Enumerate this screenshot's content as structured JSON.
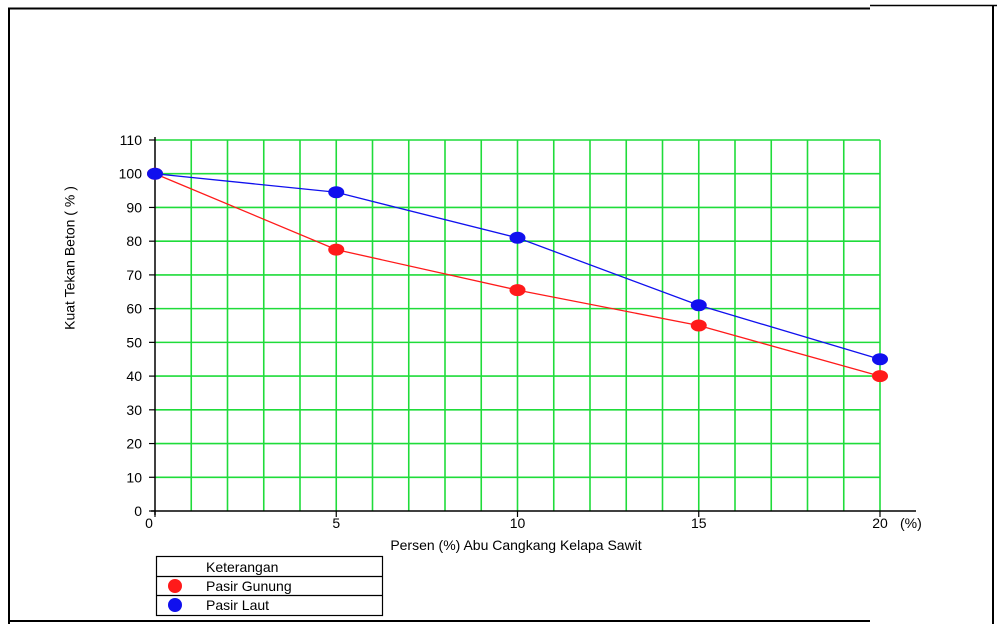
{
  "chart_data": {
    "type": "line",
    "x": [
      0,
      5,
      10,
      15,
      20
    ],
    "x_tick_labels": [
      "0",
      "5",
      "10",
      "15",
      "20"
    ],
    "x_unit_label": "(%)",
    "xlabel": "Persen (%) Abu Cangkang Kelapa Sawit",
    "ylabel": "Kuat Tekan Beton ( % )",
    "xlim": [
      0,
      20
    ],
    "ylim": [
      0,
      110
    ],
    "y_ticks": [
      0,
      10,
      20,
      30,
      40,
      50,
      60,
      70,
      80,
      90,
      100,
      110
    ],
    "x_minor_step": 1,
    "grid": true,
    "grid_color": "#1fdc3a",
    "legend_title": "Keterangan",
    "legend_position": "bottom-left",
    "series": [
      {
        "name": "Pasir Gunung",
        "color": "#ff1a1a",
        "values": [
          100,
          77.5,
          65.5,
          55,
          40
        ]
      },
      {
        "name": "Pasir Laut",
        "color": "#1010ee",
        "values": [
          100,
          94.5,
          81,
          61,
          45
        ]
      }
    ]
  }
}
